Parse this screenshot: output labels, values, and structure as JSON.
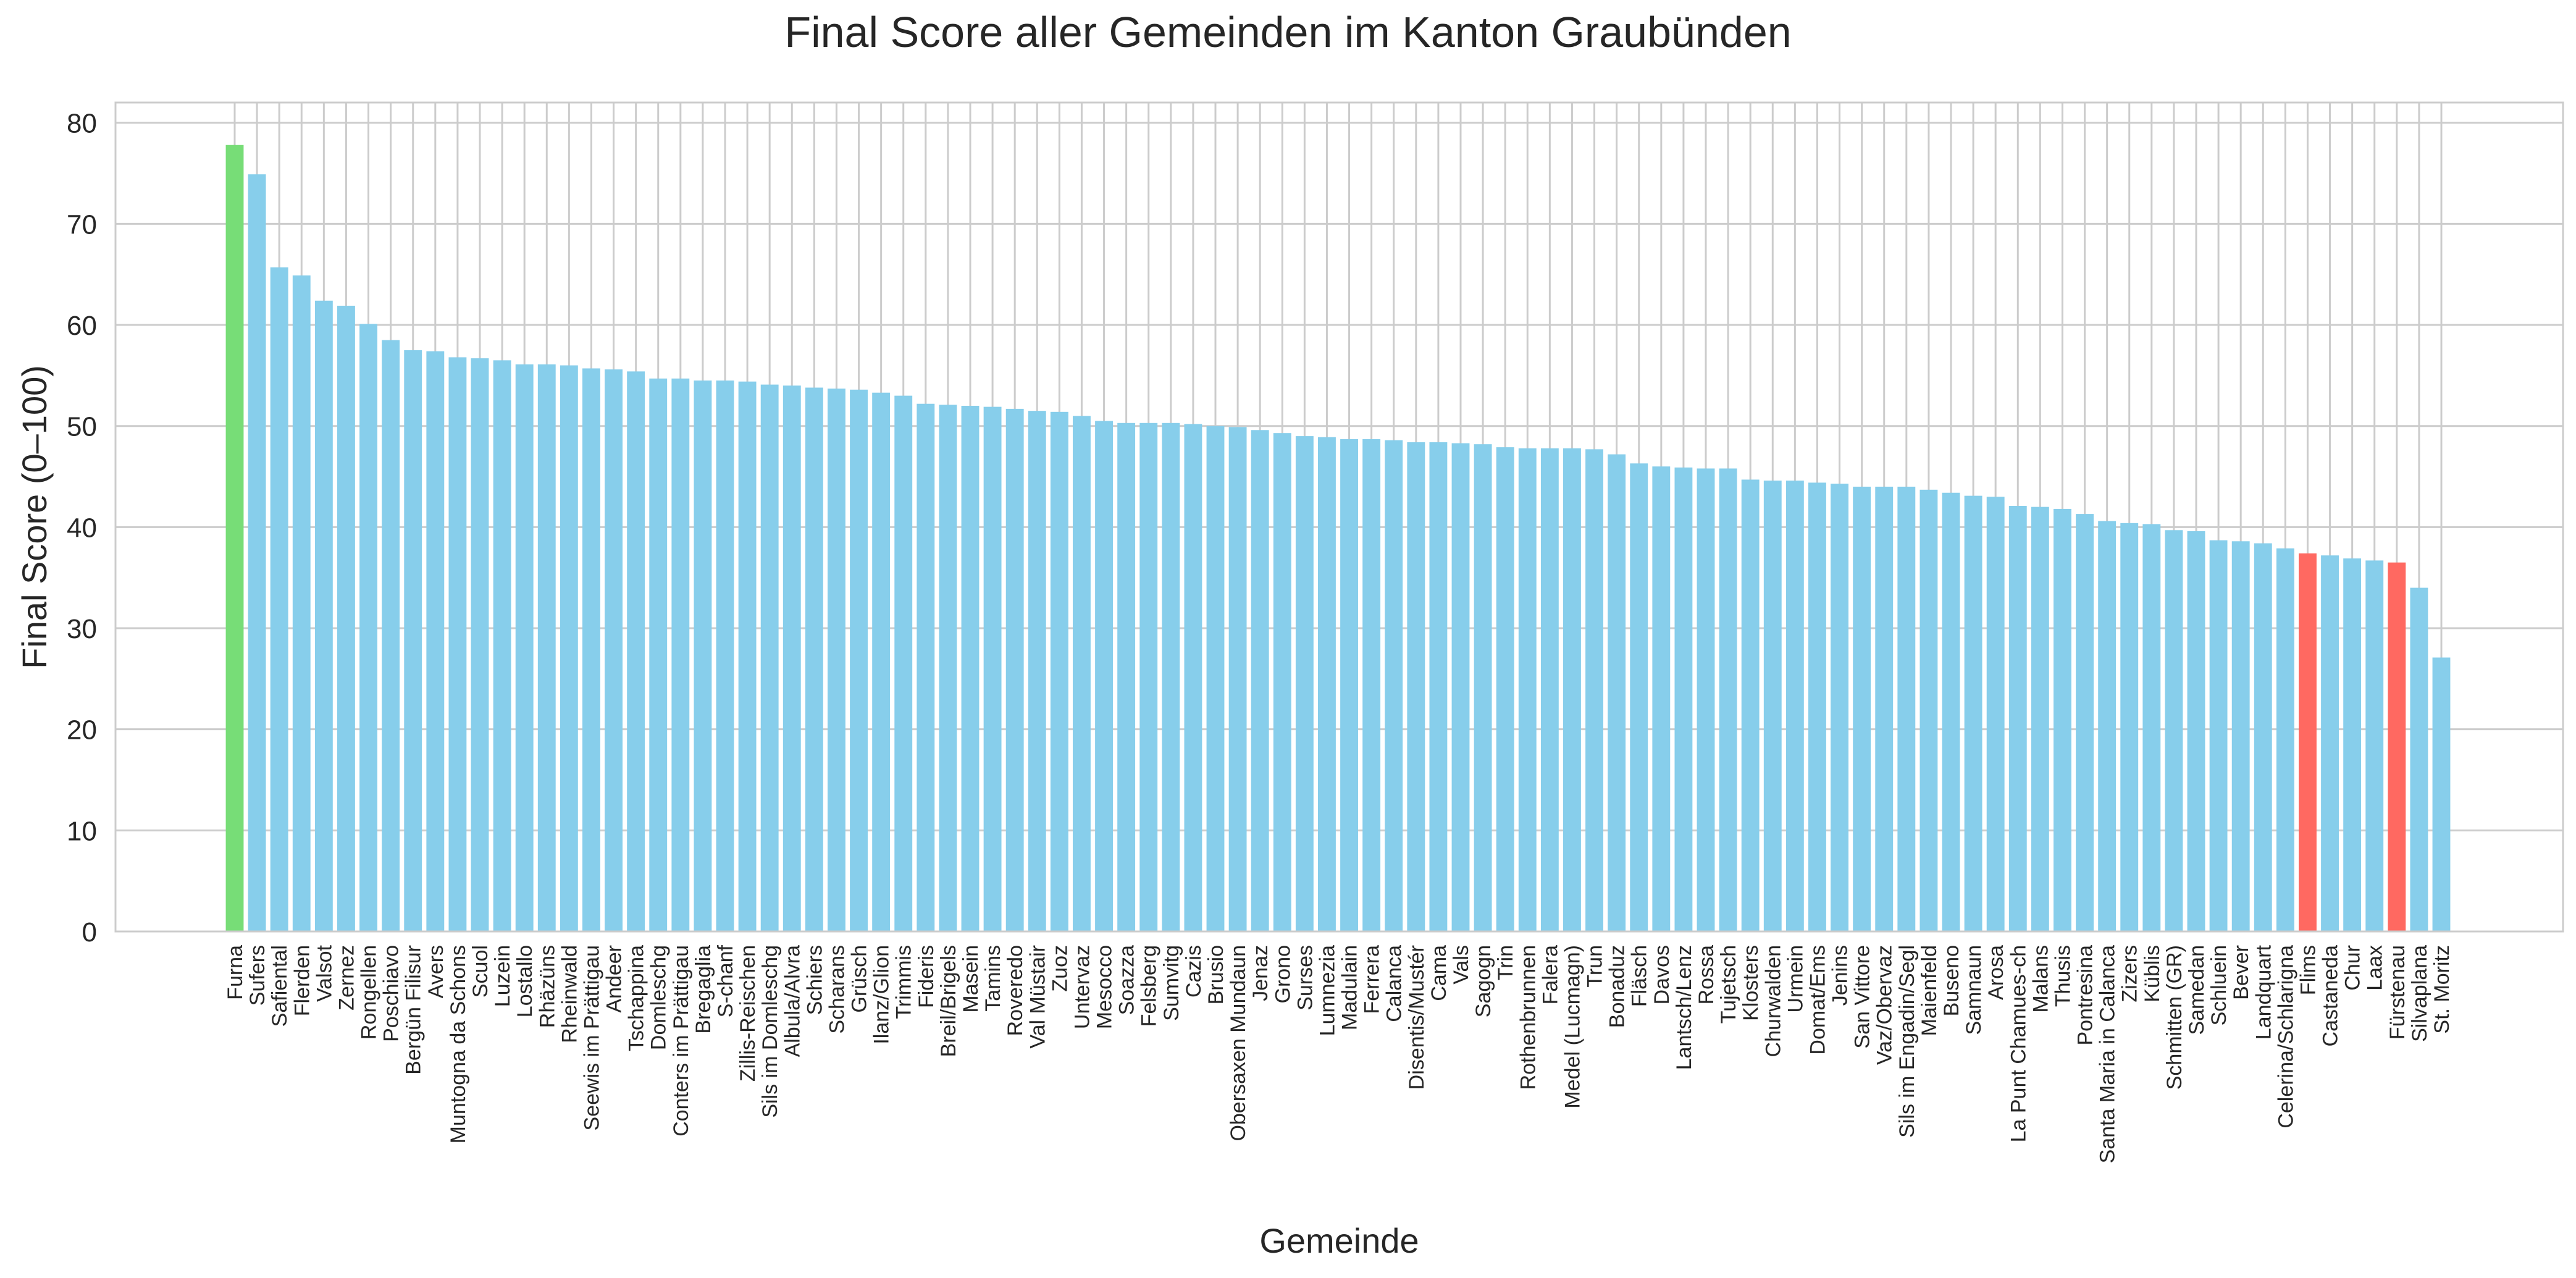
{
  "chart_data": {
    "type": "bar",
    "title": "Final Score aller Gemeinden im Kanton Graubünden",
    "xlabel": "Gemeinde",
    "ylabel": "Final Score (0–100)",
    "ylim": [
      0,
      82
    ],
    "yticks": [
      0,
      10,
      20,
      30,
      40,
      50,
      60,
      70,
      80
    ],
    "grid": true,
    "colors": {
      "default": "#87CEEB",
      "highlight_high": "#77DD77",
      "highlight_low": "#FF6961"
    },
    "highlight_high": [
      "Furna"
    ],
    "highlight_low": [
      "Flims",
      "Fürstenau"
    ],
    "categories": [
      "Furna",
      "Sufers",
      "Safiental",
      "Flerden",
      "Valsot",
      "Zernez",
      "Rongellen",
      "Poschiavo",
      "Bergün Filisur",
      "Avers",
      "Muntogna da Schons",
      "Scuol",
      "Luzein",
      "Lostallo",
      "Rhäzüns",
      "Rheinwald",
      "Seewis im Prättigau",
      "Andeer",
      "Tschappina",
      "Domleschg",
      "Conters im Prättigau",
      "Bregaglia",
      "S-chanf",
      "Zillis-Reischen",
      "Sils im Domleschg",
      "Albula/Alvra",
      "Schiers",
      "Scharans",
      "Grüsch",
      "Ilanz/Glion",
      "Trimmis",
      "Fideris",
      "Breil/Brigels",
      "Masein",
      "Tamins",
      "Roveredo",
      "Val Müstair",
      "Zuoz",
      "Untervaz",
      "Mesocco",
      "Soazza",
      "Felsberg",
      "Sumvitg",
      "Cazis",
      "Brusio",
      "Obersaxen Mundaun",
      "Jenaz",
      "Grono",
      "Surses",
      "Lumnezia",
      "Madulain",
      "Ferrera",
      "Calanca",
      "Disentis/Mustér",
      "Cama",
      "Vals",
      "Sagogn",
      "Trin",
      "Rothenbrunnen",
      "Falera",
      "Medel (Lucmagn)",
      "Trun",
      "Bonaduz",
      "Fläsch",
      "Davos",
      "Lantsch/Lenz",
      "Rossa",
      "Tujetsch",
      "Klosters",
      "Churwalden",
      "Urmein",
      "Domat/Ems",
      "Jenins",
      "San Vittore",
      "Vaz/Obervaz",
      "Sils im Engadin/Segl",
      "Maienfeld",
      "Buseno",
      "Samnaun",
      "Arosa",
      "La Punt Chamues-ch",
      "Malans",
      "Thusis",
      "Pontresina",
      "Santa Maria in Calanca",
      "Zizers",
      "Küblis",
      "Schmitten (GR)",
      "Samedan",
      "Schluein",
      "Bever",
      "Landquart",
      "Celerina/Schlarigna",
      "Flims",
      "Castaneda",
      "Chur",
      "Laax",
      "Fürstenau",
      "Silvaplana",
      "St. Moritz"
    ],
    "values": [
      77.8,
      74.9,
      65.7,
      64.9,
      62.4,
      61.9,
      60.1,
      58.5,
      57.5,
      57.4,
      56.8,
      56.7,
      56.5,
      56.1,
      56.1,
      56.0,
      55.7,
      55.6,
      55.4,
      54.7,
      54.7,
      54.5,
      54.5,
      54.4,
      54.1,
      54.0,
      53.8,
      53.7,
      53.6,
      53.3,
      53.0,
      52.2,
      52.1,
      52.0,
      51.9,
      51.7,
      51.5,
      51.4,
      51.0,
      50.5,
      50.3,
      50.3,
      50.3,
      50.2,
      50.0,
      49.9,
      49.6,
      49.3,
      49.0,
      48.9,
      48.7,
      48.7,
      48.6,
      48.4,
      48.4,
      48.3,
      48.2,
      47.9,
      47.8,
      47.8,
      47.8,
      47.7,
      47.2,
      46.3,
      46.0,
      45.9,
      45.8,
      45.8,
      44.7,
      44.6,
      44.6,
      44.4,
      44.3,
      44.0,
      44.0,
      44.0,
      43.7,
      43.4,
      43.1,
      43.0,
      42.1,
      42.0,
      41.8,
      41.3,
      40.6,
      40.4,
      40.3,
      39.7,
      39.6,
      38.7,
      38.6,
      38.4,
      37.9,
      37.4,
      37.2,
      36.9,
      36.7,
      36.5,
      34.0,
      27.1
    ]
  }
}
